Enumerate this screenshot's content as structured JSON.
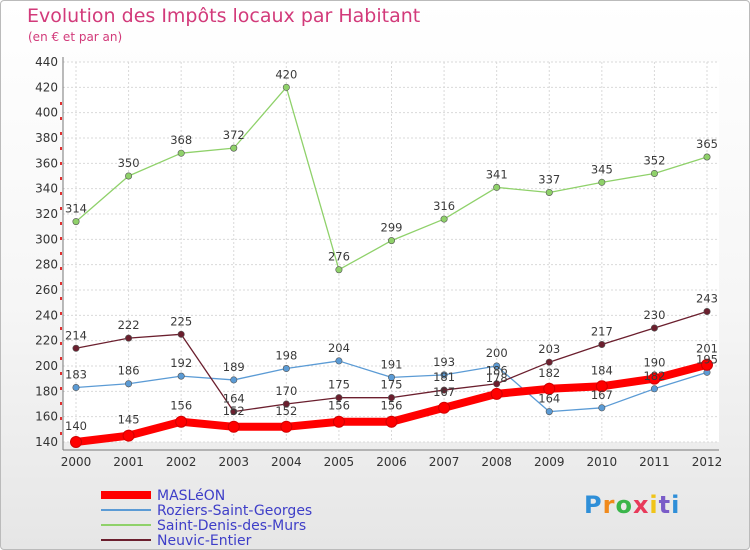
{
  "header": {
    "title": "Evolution des Impôts locaux par Habitant",
    "subtitle": "(en € et par an)"
  },
  "logo": {
    "text": "Proxiti",
    "colors": [
      "#2f8fd8",
      "#f08a1c",
      "#3ab54a",
      "#e83a5a",
      "#f0c419",
      "#7a5cc8",
      "#2f8fd8"
    ]
  },
  "chart_data": {
    "type": "line",
    "x": [
      2000,
      2001,
      2002,
      2003,
      2004,
      2005,
      2006,
      2007,
      2008,
      2009,
      2010,
      2011,
      2012
    ],
    "ylim": [
      140,
      440
    ],
    "yticks": [
      140,
      160,
      180,
      200,
      220,
      240,
      260,
      280,
      300,
      320,
      340,
      360,
      380,
      400,
      420,
      440
    ],
    "grid": true,
    "legend": "bottom-left",
    "series": [
      {
        "name": "MASLéON",
        "color": "#ff0000",
        "values": [
          140,
          145,
          156,
          152,
          152,
          156,
          156,
          167,
          178,
          182,
          184,
          190,
          201
        ]
      },
      {
        "name": "Roziers-Saint-Georges",
        "color": "#5b9bd5",
        "values": [
          183,
          186,
          192,
          189,
          198,
          204,
          191,
          193,
          200,
          164,
          167,
          182,
          195
        ]
      },
      {
        "name": "Saint-Denis-des-Murs",
        "color": "#8fd16a",
        "values": [
          314,
          350,
          368,
          372,
          420,
          276,
          299,
          316,
          341,
          337,
          345,
          352,
          365
        ]
      },
      {
        "name": "Neuvic-Entier",
        "color": "#6b1f2e",
        "values": [
          214,
          222,
          225,
          164,
          170,
          175,
          175,
          181,
          186,
          203,
          217,
          230,
          243
        ]
      }
    ]
  }
}
